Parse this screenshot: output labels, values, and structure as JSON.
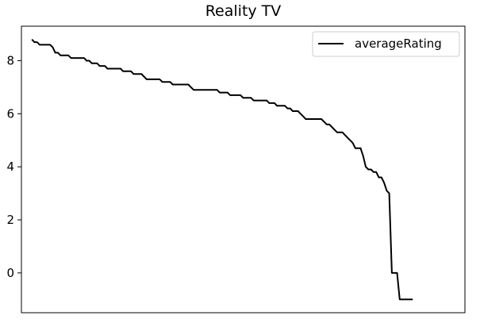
{
  "chart_data": {
    "type": "line",
    "title": "Reality TV",
    "xlabel": "",
    "ylabel": "",
    "ylim": [
      -1.5,
      9.3
    ],
    "xlim": [
      -4,
      166
    ],
    "yticks": [
      0,
      2,
      4,
      6,
      8
    ],
    "grid": false,
    "legend": {
      "placement": "top-right",
      "entries": [
        "averageRating"
      ]
    },
    "colors": {
      "line": "#000000",
      "axes": "#000000",
      "background": "#ffffff"
    },
    "series": [
      {
        "name": "averageRating",
        "values": [
          8.8,
          8.7,
          8.7,
          8.6,
          8.6,
          8.6,
          8.6,
          8.6,
          8.5,
          8.3,
          8.3,
          8.2,
          8.2,
          8.2,
          8.2,
          8.1,
          8.1,
          8.1,
          8.1,
          8.1,
          8.1,
          8.0,
          8.0,
          7.9,
          7.9,
          7.9,
          7.8,
          7.8,
          7.8,
          7.7,
          7.7,
          7.7,
          7.7,
          7.7,
          7.7,
          7.6,
          7.6,
          7.6,
          7.6,
          7.5,
          7.5,
          7.5,
          7.5,
          7.4,
          7.3,
          7.3,
          7.3,
          7.3,
          7.3,
          7.3,
          7.2,
          7.2,
          7.2,
          7.2,
          7.1,
          7.1,
          7.1,
          7.1,
          7.1,
          7.1,
          7.1,
          7.0,
          6.9,
          6.9,
          6.9,
          6.9,
          6.9,
          6.9,
          6.9,
          6.9,
          6.9,
          6.9,
          6.8,
          6.8,
          6.8,
          6.8,
          6.7,
          6.7,
          6.7,
          6.7,
          6.7,
          6.6,
          6.6,
          6.6,
          6.6,
          6.5,
          6.5,
          6.5,
          6.5,
          6.5,
          6.5,
          6.4,
          6.4,
          6.4,
          6.3,
          6.3,
          6.3,
          6.3,
          6.2,
          6.2,
          6.1,
          6.1,
          6.1,
          6.0,
          5.9,
          5.8,
          5.8,
          5.8,
          5.8,
          5.8,
          5.8,
          5.8,
          5.7,
          5.6,
          5.6,
          5.5,
          5.4,
          5.3,
          5.3,
          5.3,
          5.2,
          5.1,
          5.0,
          4.9,
          4.7,
          4.7,
          4.7,
          4.4,
          4.0,
          3.9,
          3.9,
          3.8,
          3.8,
          3.6,
          3.6,
          3.4,
          3.1,
          3.0,
          0.0,
          0.0,
          0.0,
          -1.0,
          -1.0,
          -1.0,
          -1.0,
          -1.0,
          -1.0
        ]
      }
    ]
  }
}
